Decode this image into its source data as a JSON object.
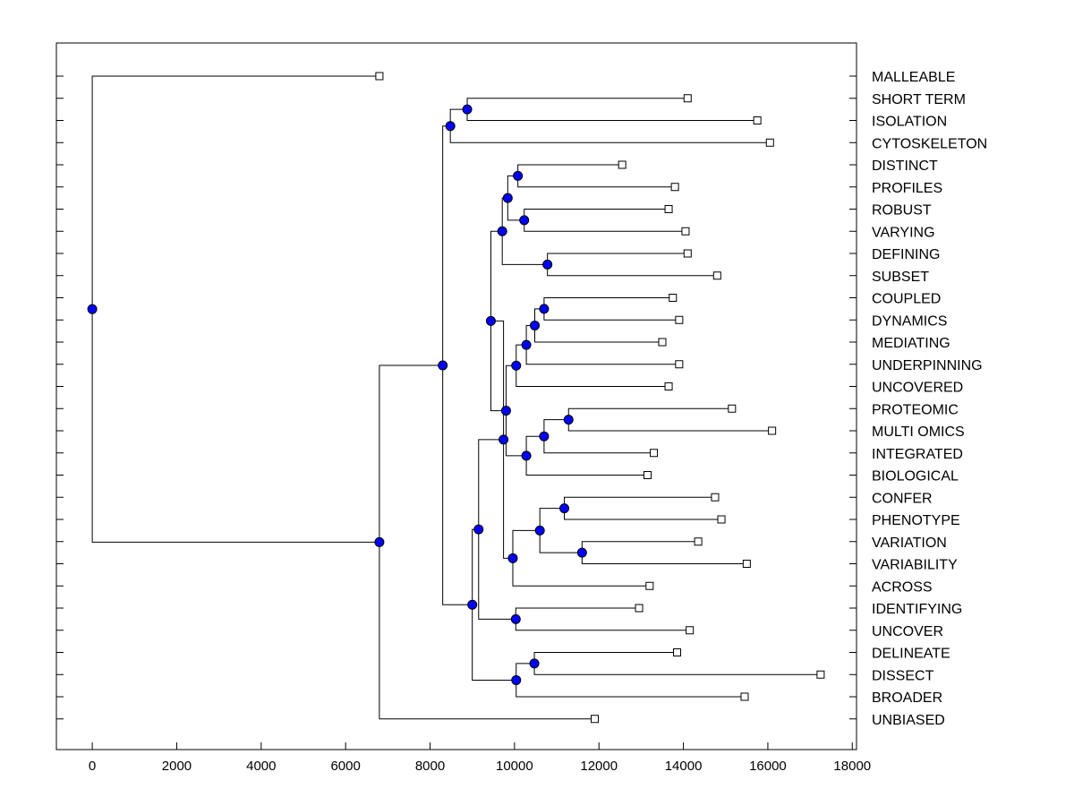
{
  "chart_data": {
    "type": "dendrogram",
    "orientation": "horizontal",
    "x_axis": {
      "range": [
        -850,
        18100
      ],
      "ticks": [
        0,
        2000,
        4000,
        6000,
        8000,
        10000,
        12000,
        14000,
        16000,
        18000
      ],
      "tick_labels": [
        "0",
        "2000",
        "4000",
        "6000",
        "8000",
        "10000",
        "12000",
        "14000",
        "16000",
        "18000"
      ]
    },
    "grid": false,
    "colors": {
      "node": "#0000ff",
      "line": "#000000",
      "leaf_marker": "#ffffff"
    },
    "leaves": [
      {
        "label": "MALLEABLE",
        "value": 6800
      },
      {
        "label": "SHORT TERM",
        "value": 14100
      },
      {
        "label": "ISOLATION",
        "value": 15750
      },
      {
        "label": "CYTOSKELETON",
        "value": 16050
      },
      {
        "label": "DISTINCT",
        "value": 12550
      },
      {
        "label": "PROFILES",
        "value": 13800
      },
      {
        "label": "ROBUST",
        "value": 13650
      },
      {
        "label": "VARYING",
        "value": 14050
      },
      {
        "label": "DEFINING",
        "value": 14100
      },
      {
        "label": "SUBSET",
        "value": 14800
      },
      {
        "label": "COUPLED",
        "value": 13750
      },
      {
        "label": "DYNAMICS",
        "value": 13900
      },
      {
        "label": "MEDIATING",
        "value": 13500
      },
      {
        "label": "UNDERPINNING",
        "value": 13900
      },
      {
        "label": "UNCOVERED",
        "value": 13650
      },
      {
        "label": "PROTEOMIC",
        "value": 15150
      },
      {
        "label": "MULTI OMICS",
        "value": 16100
      },
      {
        "label": "INTEGRATED",
        "value": 13300
      },
      {
        "label": "BIOLOGICAL",
        "value": 13150
      },
      {
        "label": "CONFER",
        "value": 14750
      },
      {
        "label": "PHENOTYPE",
        "value": 14900
      },
      {
        "label": "VARIATION",
        "value": 14350
      },
      {
        "label": "VARIABILITY",
        "value": 15500
      },
      {
        "label": "ACROSS",
        "value": 13200
      },
      {
        "label": "IDENTIFYING",
        "value": 12950
      },
      {
        "label": "UNCOVER",
        "value": 14150
      },
      {
        "label": "DELINEATE",
        "value": 13850
      },
      {
        "label": "DISSECT",
        "value": 17250
      },
      {
        "label": "BROADER",
        "value": 15450
      },
      {
        "label": "UNBIASED",
        "value": 11900
      }
    ],
    "merges": [
      {
        "value": 8880,
        "children": [
          "L1",
          "L2"
        ]
      },
      {
        "value": 8480,
        "children": [
          "N0",
          "L3"
        ]
      },
      {
        "value": 10080,
        "children": [
          "L4",
          "L5"
        ]
      },
      {
        "value": 10230,
        "children": [
          "L6",
          "L7"
        ]
      },
      {
        "value": 9840,
        "children": [
          "N2",
          "N3"
        ]
      },
      {
        "value": 10780,
        "children": [
          "L8",
          "L9"
        ]
      },
      {
        "value": 9710,
        "children": [
          "N4",
          "N5"
        ]
      },
      {
        "value": 10700,
        "children": [
          "L10",
          "L11"
        ]
      },
      {
        "value": 10480,
        "children": [
          "N7",
          "L12"
        ]
      },
      {
        "value": 10280,
        "children": [
          "N8",
          "L13"
        ]
      },
      {
        "value": 10040,
        "children": [
          "N9",
          "L14"
        ]
      },
      {
        "value": 11280,
        "children": [
          "L15",
          "L16"
        ]
      },
      {
        "value": 10700,
        "children": [
          "N11",
          "L17"
        ]
      },
      {
        "value": 10280,
        "children": [
          "N12",
          "L18"
        ]
      },
      {
        "value": 9800,
        "children": [
          "N10",
          "N13"
        ]
      },
      {
        "value": 9440,
        "children": [
          "N6",
          "N14"
        ]
      },
      {
        "value": 11180,
        "children": [
          "L19",
          "L20"
        ]
      },
      {
        "value": 11600,
        "children": [
          "L21",
          "L22"
        ]
      },
      {
        "value": 10600,
        "children": [
          "N16",
          "N17"
        ]
      },
      {
        "value": 9960,
        "children": [
          "N18",
          "L23"
        ]
      },
      {
        "value": 9740,
        "children": [
          "N15",
          "N19"
        ]
      },
      {
        "value": 10030,
        "children": [
          "L24",
          "L25"
        ]
      },
      {
        "value": 9150,
        "children": [
          "N20",
          "N21"
        ]
      },
      {
        "value": 10470,
        "children": [
          "L26",
          "L27"
        ]
      },
      {
        "value": 10040,
        "children": [
          "N23",
          "L28"
        ]
      },
      {
        "value": 9000,
        "children": [
          "N22",
          "N24"
        ]
      },
      {
        "value": 8300,
        "children": [
          "N1",
          "N25"
        ]
      },
      {
        "value": 6800,
        "children": [
          "N26",
          "L29"
        ]
      },
      {
        "value": 0,
        "children": [
          "L0",
          "N27"
        ]
      }
    ]
  }
}
